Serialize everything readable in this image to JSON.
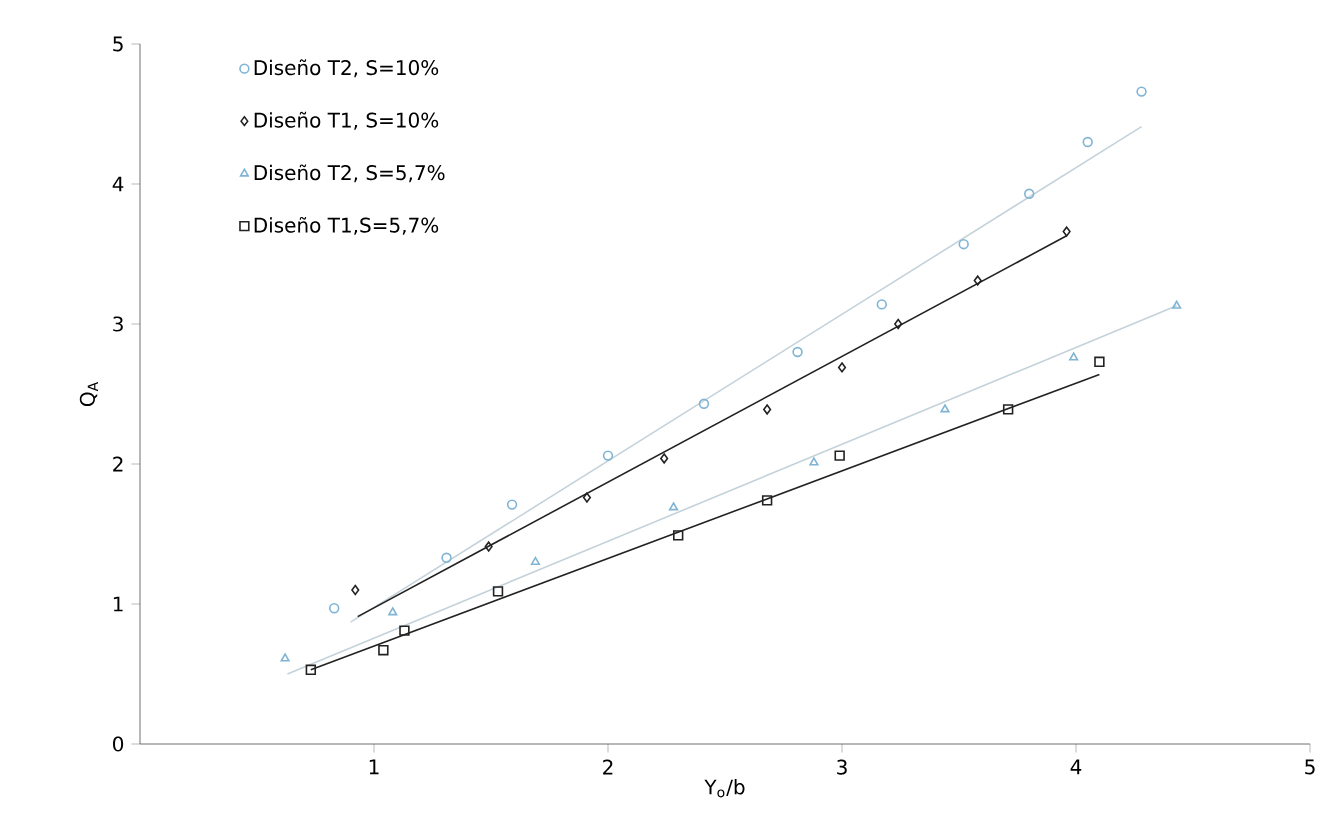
{
  "chart_data": {
    "type": "scatter",
    "xlabel": "Y$_{o}$/b",
    "ylabel": "Q$_{A}$",
    "xlim": [
      0,
      5
    ],
    "ylim": [
      0,
      5
    ],
    "xticks": [
      1,
      2,
      3,
      4,
      5
    ],
    "yticks": [
      0,
      1,
      2,
      3,
      4,
      5
    ],
    "legend": "top left",
    "series": [
      {
        "name": "Diseño T2, S=10%",
        "marker": "circle",
        "color": "#7fb4d4",
        "x": [
          0.83,
          1.31,
          1.59,
          2.0,
          2.41,
          2.81,
          3.17,
          3.52,
          3.8,
          4.05,
          4.28
        ],
        "values": [
          0.97,
          1.33,
          1.71,
          2.06,
          2.43,
          2.8,
          3.14,
          3.57,
          3.93,
          4.3,
          4.66
        ]
      },
      {
        "name": "Diseño T1, S=10%",
        "marker": "diamond",
        "color": "#222222",
        "x": [
          0.92,
          1.49,
          1.91,
          2.24,
          2.68,
          3.0,
          3.24,
          3.58,
          3.96
        ],
        "values": [
          1.1,
          1.41,
          1.76,
          2.04,
          2.39,
          2.69,
          3.0,
          3.31,
          3.66
        ]
      },
      {
        "name": "Diseño T2, S=5,7%",
        "marker": "triangle",
        "color": "#7fb4d4",
        "x": [
          0.62,
          1.08,
          1.69,
          2.28,
          2.88,
          3.44,
          3.99,
          4.43
        ],
        "values": [
          0.61,
          0.94,
          1.3,
          1.69,
          2.01,
          2.39,
          2.76,
          3.13
        ]
      },
      {
        "name": "Diseño T1,S=5,7%",
        "marker": "square",
        "color": "#222222",
        "x": [
          0.73,
          1.04,
          1.13,
          1.53,
          2.3,
          2.68,
          2.99,
          3.71,
          4.1
        ],
        "values": [
          0.53,
          0.67,
          0.81,
          1.09,
          1.49,
          1.74,
          2.06,
          2.39,
          2.73
        ]
      },
      {
        "type": "line",
        "marker": "none",
        "color": "#c4d2da",
        "x": [
          0.9,
          4.28
        ],
        "values": [
          0.87,
          4.41
        ]
      },
      {
        "type": "line",
        "marker": "none",
        "color": "#222222",
        "x": [
          0.93,
          3.96
        ],
        "values": [
          0.91,
          3.63
        ]
      },
      {
        "type": "line",
        "marker": "none",
        "color": "#c4d2da",
        "x": [
          0.63,
          4.43
        ],
        "values": [
          0.5,
          3.13
        ]
      },
      {
        "type": "line",
        "marker": "none",
        "color": "#222222",
        "x": [
          0.73,
          4.1
        ],
        "values": [
          0.53,
          2.64
        ]
      }
    ]
  }
}
